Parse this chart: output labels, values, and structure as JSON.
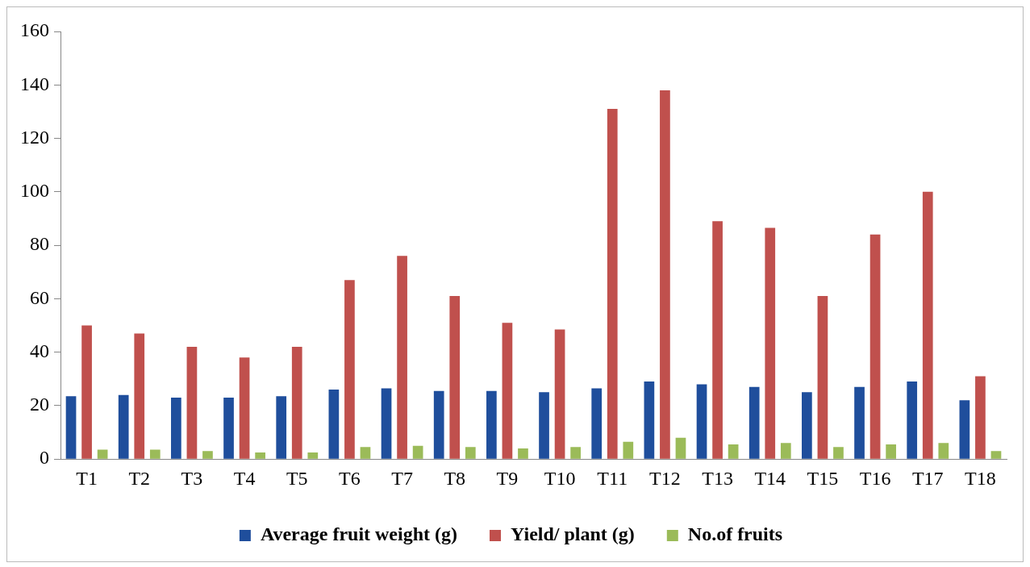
{
  "chart_data": {
    "type": "bar",
    "categories": [
      "T1",
      "T2",
      "T3",
      "T4",
      "T5",
      "T6",
      "T7",
      "T8",
      "T9",
      "T10",
      "T11",
      "T12",
      "T13",
      "T14",
      "T15",
      "T16",
      "T17",
      "T18"
    ],
    "series": [
      {
        "name": "Average fruit weight (g)",
        "color": "#1f4e9c",
        "values": [
          23.5,
          24,
          23,
          23,
          23.5,
          26,
          26.5,
          25.5,
          25.5,
          25,
          26.5,
          29,
          28,
          27,
          25,
          27,
          29,
          22
        ]
      },
      {
        "name": "Yield/ plant (g)",
        "color": "#c0504d",
        "values": [
          50,
          47,
          42,
          38,
          42,
          67,
          76,
          61,
          51,
          48.5,
          131,
          138,
          89,
          86.5,
          61,
          84,
          100,
          31
        ]
      },
      {
        "name": "No.of fruits",
        "color": "#9bbb59",
        "values": [
          3.5,
          3.5,
          3,
          2.5,
          2.5,
          4.5,
          5,
          4.5,
          4,
          4.5,
          6.5,
          8,
          5.5,
          6,
          4.5,
          5.5,
          6,
          3
        ]
      }
    ],
    "ylim": [
      0,
      160
    ],
    "yticks": [
      0,
      20,
      40,
      60,
      80,
      100,
      120,
      140,
      160
    ],
    "grid": false,
    "legend": "bottom"
  }
}
